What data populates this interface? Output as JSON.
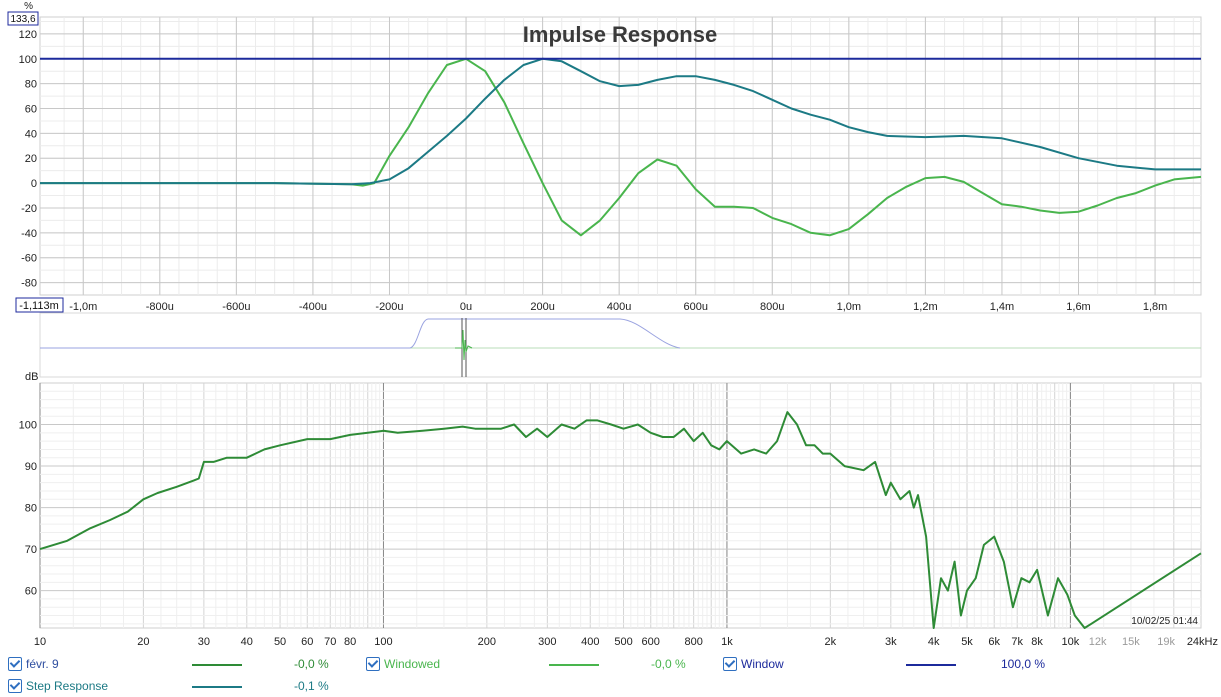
{
  "chart_data": [
    {
      "type": "line",
      "title": "Impulse Response",
      "ylabel": "%",
      "x_unit": "seconds",
      "xlim": [
        -0.001113,
        0.00192
      ],
      "ylim": [
        -90,
        133.6
      ],
      "y_top_readout": "133,6",
      "x_left_readout": "-1,113m",
      "y_ticks": [
        {
          "v": 120,
          "label": "120"
        },
        {
          "v": 100,
          "label": "100"
        },
        {
          "v": 80,
          "label": "80"
        },
        {
          "v": 60,
          "label": "60"
        },
        {
          "v": 40,
          "label": "40"
        },
        {
          "v": 20,
          "label": "20"
        },
        {
          "v": 0,
          "label": "0"
        },
        {
          "v": -20,
          "label": "-20"
        },
        {
          "v": -40,
          "label": "-40"
        },
        {
          "v": -60,
          "label": "-60"
        },
        {
          "v": -80,
          "label": "-80"
        }
      ],
      "x_ticks": [
        {
          "v": -0.001,
          "label": "-1,0m"
        },
        {
          "v": -0.0008,
          "label": "-800u"
        },
        {
          "v": -0.0006,
          "label": "-600u"
        },
        {
          "v": -0.0004,
          "label": "-400u"
        },
        {
          "v": -0.0002,
          "label": "-200u"
        },
        {
          "v": 0,
          "label": "0u"
        },
        {
          "v": 0.0002,
          "label": "200u"
        },
        {
          "v": 0.0004,
          "label": "400u"
        },
        {
          "v": 0.0006,
          "label": "600u"
        },
        {
          "v": 0.0008,
          "label": "800u"
        },
        {
          "v": 0.001,
          "label": "1,0m"
        },
        {
          "v": 0.0012,
          "label": "1,2m"
        },
        {
          "v": 0.0014,
          "label": "1,4m"
        },
        {
          "v": 0.0016,
          "label": "1,6m"
        },
        {
          "v": 0.0018,
          "label": "1,8m"
        }
      ],
      "grid": true,
      "series": [
        {
          "name": "Windowed",
          "color": "#49b54d",
          "x": [
            -0.001113,
            -0.0008,
            -0.0005,
            -0.0003,
            -0.00027,
            -0.00024,
            -0.0002,
            -0.00015,
            -0.0001,
            -5e-05,
            0,
            5e-05,
            0.0001,
            0.00015,
            0.0002,
            0.00025,
            0.0003,
            0.00035,
            0.0004,
            0.00045,
            0.0005,
            0.00055,
            0.0006,
            0.00065,
            0.0007,
            0.00075,
            0.0008,
            0.00085,
            0.0009,
            0.00095,
            0.001,
            0.00105,
            0.0011,
            0.00115,
            0.0012,
            0.00125,
            0.0013,
            0.00135,
            0.0014,
            0.00145,
            0.0015,
            0.00155,
            0.0016,
            0.00165,
            0.0017,
            0.00175,
            0.0018,
            0.00185,
            0.00192
          ],
          "y": [
            0,
            0,
            0,
            -1,
            -2,
            0,
            22,
            45,
            72,
            95,
            100,
            90,
            65,
            32,
            0,
            -30,
            -42,
            -30,
            -12,
            8,
            19,
            14,
            -5,
            -19,
            -19,
            -20,
            -28,
            -33,
            -40,
            -42,
            -37,
            -25,
            -12,
            -3,
            4,
            5,
            1,
            -8,
            -17,
            -19,
            -22,
            -24,
            -23,
            -18,
            -12,
            -8,
            -2,
            3,
            5
          ]
        },
        {
          "name": "Step Response",
          "color": "#1c7a85",
          "x": [
            -0.001113,
            -0.0008,
            -0.0005,
            -0.0003,
            -0.00025,
            -0.0002,
            -0.00015,
            -0.0001,
            -5e-05,
            0,
            5e-05,
            0.0001,
            0.00015,
            0.0002,
            0.00025,
            0.0003,
            0.00035,
            0.0004,
            0.00045,
            0.0005,
            0.00055,
            0.0006,
            0.00065,
            0.0007,
            0.00075,
            0.0008,
            0.00085,
            0.0009,
            0.00095,
            0.001,
            0.00105,
            0.0011,
            0.0012,
            0.0013,
            0.0014,
            0.0015,
            0.0016,
            0.0017,
            0.0018,
            0.00192
          ],
          "y": [
            0,
            0,
            0,
            -1,
            0,
            3,
            12,
            25,
            38,
            52,
            68,
            83,
            95,
            100,
            98,
            90,
            82,
            78,
            79,
            83,
            86,
            86,
            83,
            79,
            74,
            67,
            60,
            55,
            51,
            45,
            41,
            38,
            37,
            38,
            36,
            29,
            20,
            14,
            11,
            11
          ]
        },
        {
          "name": "Window",
          "color": "#1c2a9c",
          "x": [
            -0.001113,
            0.00192
          ],
          "y": [
            100,
            100
          ]
        }
      ]
    },
    {
      "type": "line",
      "ylabel": "dB",
      "x_unit": "Hz",
      "x_scale": "log",
      "xlim": [
        10,
        24000
      ],
      "ylim": [
        51,
        110
      ],
      "timestamp": "10/02/25 01:44",
      "y_ticks": [
        {
          "v": 100,
          "label": "100"
        },
        {
          "v": 90,
          "label": "90"
        },
        {
          "v": 80,
          "label": "80"
        },
        {
          "v": 70,
          "label": "70"
        },
        {
          "v": 60,
          "label": "60"
        }
      ],
      "x_ticks": [
        {
          "v": 10,
          "label": "10"
        },
        {
          "v": 20,
          "label": "20"
        },
        {
          "v": 30,
          "label": "30"
        },
        {
          "v": 40,
          "label": "40"
        },
        {
          "v": 50,
          "label": "50"
        },
        {
          "v": 60,
          "label": "60"
        },
        {
          "v": 70,
          "label": "70"
        },
        {
          "v": 80,
          "label": "80"
        },
        {
          "v": 100,
          "label": "100"
        },
        {
          "v": 200,
          "label": "200"
        },
        {
          "v": 300,
          "label": "300"
        },
        {
          "v": 400,
          "label": "400"
        },
        {
          "v": 500,
          "label": "500"
        },
        {
          "v": 600,
          "label": "600"
        },
        {
          "v": 800,
          "label": "800"
        },
        {
          "v": 1000,
          "label": "1k"
        },
        {
          "v": 2000,
          "label": "2k"
        },
        {
          "v": 3000,
          "label": "3k"
        },
        {
          "v": 4000,
          "label": "4k"
        },
        {
          "v": 5000,
          "label": "5k"
        },
        {
          "v": 6000,
          "label": "6k"
        },
        {
          "v": 7000,
          "label": "7k"
        },
        {
          "v": 8000,
          "label": "8k"
        },
        {
          "v": 10000,
          "label": "10k"
        },
        {
          "v": 12000,
          "label": "12k"
        },
        {
          "v": 15000,
          "label": "15k"
        },
        {
          "v": 19000,
          "label": "19k"
        },
        {
          "v": 24000,
          "label": "24kHz"
        }
      ],
      "grid": true,
      "series": [
        {
          "name": "févr. 9",
          "color": "#2e8b36",
          "x": [
            10,
            12,
            14,
            16,
            18,
            20,
            22,
            25,
            28,
            29,
            30,
            32,
            35,
            40,
            45,
            50,
            60,
            70,
            80,
            90,
            100,
            110,
            130,
            150,
            170,
            185,
            200,
            220,
            240,
            260,
            280,
            300,
            330,
            360,
            390,
            420,
            460,
            500,
            550,
            600,
            650,
            700,
            750,
            800,
            850,
            900,
            950,
            1000,
            1100,
            1200,
            1300,
            1400,
            1500,
            1600,
            1700,
            1800,
            1900,
            2000,
            2200,
            2500,
            2700,
            2900,
            3000,
            3200,
            3400,
            3500,
            3600,
            3800,
            4000,
            4200,
            4400,
            4600,
            4800,
            5000,
            5300,
            5600,
            6000,
            6400,
            6800,
            7200,
            7600,
            8000,
            8600,
            9200,
            9800,
            10300,
            11000,
            11500,
            24000
          ],
          "y": [
            70,
            72,
            75,
            77,
            79,
            82,
            83.5,
            85,
            86.5,
            87,
            91,
            91,
            92,
            92,
            94,
            95,
            96.5,
            96.5,
            97.5,
            98,
            98.5,
            98,
            98.5,
            99,
            99.5,
            99,
            99,
            99,
            100,
            97,
            99,
            97,
            100,
            99,
            101,
            101,
            100,
            99,
            100,
            98,
            97,
            97,
            99,
            96,
            98,
            95,
            94,
            96,
            93,
            94,
            93,
            96,
            103,
            100,
            95,
            95,
            93,
            93,
            90,
            89,
            91,
            83,
            86,
            82,
            84,
            80,
            83,
            73,
            50,
            63,
            60,
            67,
            54,
            60,
            63,
            71,
            73,
            67,
            56,
            63,
            62,
            65,
            54,
            63,
            59,
            54,
            51,
            52,
            69
          ]
        }
      ]
    }
  ],
  "legend": [
    {
      "label": "févr. 9",
      "value": "-0,0 %",
      "color": "#2e8b36"
    },
    {
      "label": "Windowed",
      "value": "-0,0 %",
      "color": "#49b54d"
    },
    {
      "label": "Window",
      "value": "100,0 %",
      "color": "#1c2a9c"
    },
    {
      "label": "Step Response",
      "value": "-0,1 %",
      "color": "#1c7a85"
    }
  ]
}
